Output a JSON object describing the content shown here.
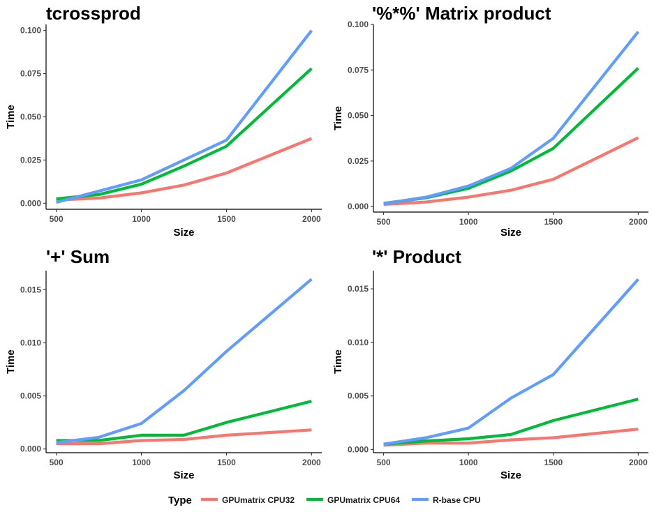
{
  "colors": {
    "GPUmatrix CPU32": "#F8766D",
    "GPUmatrix CPU64": "#00BA38",
    "R-base CPU": "#619CFF"
  },
  "legend": {
    "title": "Type",
    "position": "bottom",
    "entries": [
      "GPUmatrix CPU32",
      "GPUmatrix CPU64",
      "R-base CPU"
    ]
  },
  "chart_data": [
    {
      "type": "line",
      "title": "tcrossprod",
      "xlabel": "Size",
      "ylabel": "Time",
      "x": [
        500,
        750,
        1000,
        1250,
        1500,
        2000
      ],
      "xlim": [
        440,
        2060
      ],
      "ylim": [
        -0.0035,
        0.1035
      ],
      "xticks": [
        500,
        1000,
        1500,
        2000
      ],
      "xtick_labels": [
        "500",
        "1000",
        "1500",
        "2000"
      ],
      "yticks": [
        0,
        0.025,
        0.05,
        0.075,
        0.1
      ],
      "ytick_labels": [
        "0.000",
        "0.025",
        "0.050",
        "0.075",
        "0.100"
      ],
      "grid": false,
      "series": [
        {
          "name": "GPUmatrix CPU32",
          "values": [
            0.0018,
            0.003,
            0.006,
            0.0105,
            0.0175,
            0.0375
          ]
        },
        {
          "name": "GPUmatrix CPU64",
          "values": [
            0.0025,
            0.005,
            0.011,
            0.0215,
            0.033,
            0.078
          ]
        },
        {
          "name": "R-base CPU",
          "values": [
            0.0005,
            0.007,
            0.0135,
            0.025,
            0.0365,
            0.1
          ]
        }
      ]
    },
    {
      "type": "line",
      "title": "'%*%' Matrix product",
      "xlabel": "Size",
      "ylabel": "Time",
      "x": [
        500,
        750,
        1000,
        1250,
        1500,
        2000
      ],
      "xlim": [
        440,
        2060
      ],
      "ylim": [
        -0.003,
        0.1
      ],
      "xticks": [
        500,
        1000,
        1500,
        2000
      ],
      "xtick_labels": [
        "500",
        "1000",
        "1500",
        "2000"
      ],
      "yticks": [
        0,
        0.025,
        0.05,
        0.075,
        0.1
      ],
      "ytick_labels": [
        "0.000",
        "0.025",
        "0.050",
        "0.075",
        "0.100"
      ],
      "grid": false,
      "series": [
        {
          "name": "GPUmatrix CPU32",
          "values": [
            0.0012,
            0.0025,
            0.0052,
            0.009,
            0.015,
            0.0378
          ]
        },
        {
          "name": "GPUmatrix CPU64",
          "values": [
            0.0018,
            0.0048,
            0.01,
            0.0195,
            0.032,
            0.076
          ]
        },
        {
          "name": "R-base CPU",
          "values": [
            0.0016,
            0.0052,
            0.0113,
            0.021,
            0.0375,
            0.096
          ]
        }
      ]
    },
    {
      "type": "line",
      "title": "'+' Sum",
      "xlabel": "Size",
      "ylabel": "Time",
      "x": [
        500,
        750,
        1000,
        1250,
        1500,
        2000
      ],
      "xlim": [
        440,
        2060
      ],
      "ylim": [
        -0.00035,
        0.0168
      ],
      "xticks": [
        500,
        1000,
        1500,
        2000
      ],
      "xtick_labels": [
        "500",
        "1000",
        "1500",
        "2000"
      ],
      "yticks": [
        0,
        0.005,
        0.01,
        0.015
      ],
      "ytick_labels": [
        "0.000",
        "0.005",
        "0.010",
        "0.015"
      ],
      "grid": false,
      "series": [
        {
          "name": "GPUmatrix CPU32",
          "values": [
            0.0005,
            0.0005,
            0.0008,
            0.0009,
            0.0013,
            0.0018
          ]
        },
        {
          "name": "GPUmatrix CPU64",
          "values": [
            0.0008,
            0.0008,
            0.0013,
            0.0013,
            0.0025,
            0.0045
          ]
        },
        {
          "name": "R-base CPU",
          "values": [
            0.0006,
            0.0011,
            0.0024,
            0.0055,
            0.0092,
            0.016
          ]
        }
      ]
    },
    {
      "type": "line",
      "title": "'*' Product",
      "xlabel": "Size",
      "ylabel": "Time",
      "x": [
        500,
        750,
        1000,
        1250,
        1500,
        2000
      ],
      "xlim": [
        440,
        2060
      ],
      "ylim": [
        -0.0003,
        0.0167
      ],
      "xticks": [
        500,
        1000,
        1500,
        2000
      ],
      "xtick_labels": [
        "500",
        "1000",
        "1500",
        "2000"
      ],
      "yticks": [
        0,
        0.005,
        0.01,
        0.015
      ],
      "ytick_labels": [
        "0.000",
        "0.005",
        "0.010",
        "0.015"
      ],
      "grid": false,
      "series": [
        {
          "name": "GPUmatrix CPU32",
          "values": [
            0.0004,
            0.0006,
            0.0006,
            0.0009,
            0.0011,
            0.0019
          ]
        },
        {
          "name": "GPUmatrix CPU64",
          "values": [
            0.0005,
            0.0008,
            0.001,
            0.0014,
            0.0027,
            0.0047
          ]
        },
        {
          "name": "R-base CPU",
          "values": [
            0.0005,
            0.0011,
            0.002,
            0.0048,
            0.007,
            0.0159
          ]
        }
      ]
    }
  ]
}
